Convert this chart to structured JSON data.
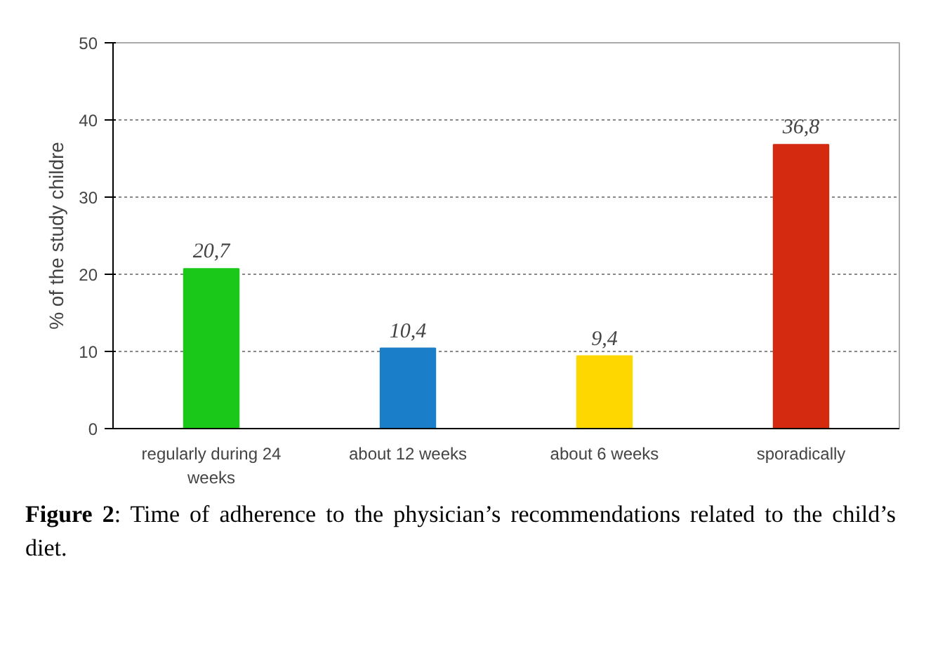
{
  "chart_data": {
    "type": "bar",
    "ylabel": "% of the study childre",
    "categories": [
      "regularly during 24 weeks",
      "about 12 weeks",
      "about 6 weeks",
      "sporadically"
    ],
    "values": [
      20.7,
      10.4,
      9.4,
      36.8
    ],
    "value_labels": [
      "20,7",
      "10,4",
      "9,4",
      "36,8"
    ],
    "colors": [
      "#19c819",
      "#1a7fc8",
      "#ffd700",
      "#d42a10"
    ],
    "ylim": [
      0,
      50
    ],
    "yticks": [
      0,
      10,
      20,
      30,
      40,
      50
    ],
    "grid": "y",
    "annotations": [
      "Figure 2: Time of adherence to the physician’s recommendations related to the child’s diet."
    ]
  }
}
